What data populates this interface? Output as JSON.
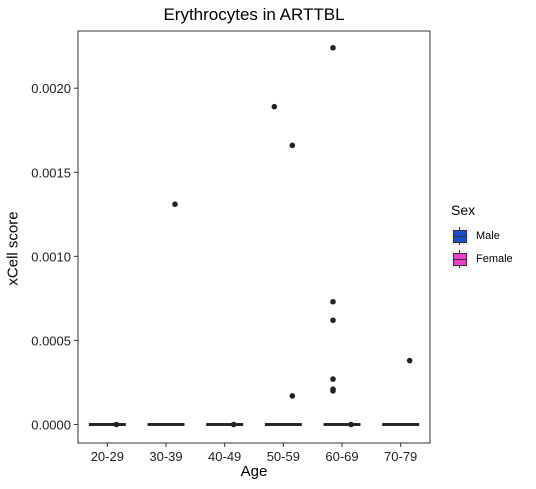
{
  "chart_data": {
    "type": "boxplot",
    "title": "Erythrocytes in ARTTBL",
    "xlabel": "Age",
    "ylabel": "xCell score",
    "categories": [
      "20-29",
      "30-39",
      "40-49",
      "50-59",
      "60-69",
      "70-79"
    ],
    "ylim": [
      -0.00011,
      0.00234
    ],
    "yticks": [
      0.0,
      0.0005,
      0.001,
      0.0015,
      0.002
    ],
    "ytick_labels": [
      "0.0000",
      "0.0005",
      "0.0010",
      "0.0015",
      "0.0020"
    ],
    "grid": false,
    "legend": {
      "title": "Sex",
      "position": "right"
    },
    "series": [
      {
        "name": "Male",
        "color": "#1a4fcf",
        "medians": [
          0,
          0,
          0,
          0,
          0,
          0
        ],
        "outliers": [
          [],
          [],
          [],
          [
            0.00189
          ],
          [
            0.00224,
            0.00073,
            0.00062,
            0.00027,
            0.00021,
            0.0002
          ],
          []
        ]
      },
      {
        "name": "Female",
        "color": "#f03ecc",
        "medians": [
          0,
          0,
          0,
          0,
          0,
          0
        ],
        "outliers": [
          [
            0.0
          ],
          [
            0.00131
          ],
          [
            0.0
          ],
          [
            0.00166,
            0.00017
          ],
          [
            0.0
          ],
          [
            0.00038
          ]
        ]
      }
    ]
  }
}
